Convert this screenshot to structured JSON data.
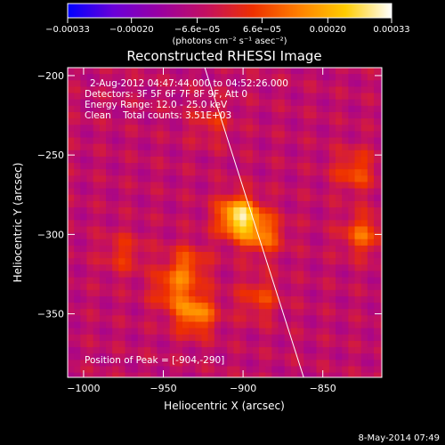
{
  "chart_data": {
    "type": "heatmap",
    "title": "Reconstructed RHESSI Image",
    "xlabel": "Heliocentric X (arcsec)",
    "ylabel": "Heliocentric Y (arcsec)",
    "xlim": [
      -1010,
      -813
    ],
    "ylim": [
      -390,
      -195
    ],
    "x_ticks": [
      -1000,
      -950,
      -900,
      -850
    ],
    "y_ticks": [
      -200,
      -250,
      -300,
      -350
    ],
    "x_tick_labels": [
      "−1000",
      "−950",
      "−900",
      "−850"
    ],
    "y_tick_labels": [
      "−200",
      "−250",
      "−300",
      "−350"
    ],
    "colorbar": {
      "ticks": [
        -0.00033,
        -0.0002,
        -6.6e-05,
        6.6e-05,
        0.0002,
        0.00033
      ],
      "tick_labels": [
        "−0.00033",
        "−0.00020",
        "−6.6e−05",
        "6.6e−05",
        "0.00020",
        "0.00033"
      ],
      "range": [
        -0.00033,
        0.00033
      ],
      "unit_label": "(photons cm⁻² s⁻¹ asec⁻²)",
      "colormap": [
        "#0000ff",
        "#6a00d8",
        "#9a00a0",
        "#c41060",
        "#ee3000",
        "#ff8000",
        "#ffcc00",
        "#ffffff"
      ]
    },
    "peak": {
      "x": -904,
      "y": -290
    },
    "sources": [
      {
        "x": -903,
        "y": -289,
        "value": 0.00033
      },
      {
        "x": -888,
        "y": -300,
        "value": 0.00018
      },
      {
        "x": -935,
        "y": -320,
        "value": 0.00015
      },
      {
        "x": -930,
        "y": -350,
        "value": 0.00022
      },
      {
        "x": -945,
        "y": -335,
        "value": 0.00014
      },
      {
        "x": -975,
        "y": -312,
        "value": 0.0001
      },
      {
        "x": -830,
        "y": -260,
        "value": 0.00014
      },
      {
        "x": -825,
        "y": -300,
        "value": 0.00016
      },
      {
        "x": -890,
        "y": -340,
        "value": 0.00012
      },
      {
        "x": -920,
        "y": -230,
        "value": 8e-05
      }
    ],
    "limb_line": {
      "x1": -924,
      "y1": -195,
      "x2": -862,
      "y2": -390
    },
    "annotations": {
      "time_range": "2-Aug-2012 04:47:44.000 to 04:52:26.000",
      "detectors": "Detectors: 3F 5F 6F 7F 8F 9F, Att 0",
      "energy": "Energy Range: 12.0 - 25.0 keV",
      "method_counts": "Clean    Total counts: 3.51E+03",
      "peak_text": "Position of Peak = [-904,-290]"
    },
    "grid": false
  },
  "footer_date": "8-May-2014 07:49"
}
